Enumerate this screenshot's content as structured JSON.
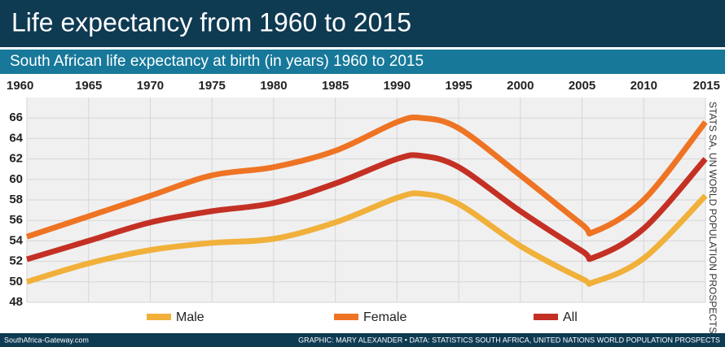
{
  "chart_data": {
    "type": "line",
    "title": "Life expectancy from 1960 to 2015",
    "subtitle": "South African life expectancy at birth (in years) 1960 to 2015",
    "source": "STATS SA, UN WORLD POPULATION PROSPECTS",
    "footer_site": "SouthAfrica-Gateway.com",
    "footer_credit": "GRAPHIC: MARY ALEXANDER • DATA: STATISTICS SOUTH AFRICA, UNITED NATIONS WORLD POPULATION PROSPECTS",
    "x": [
      1960,
      1965,
      1970,
      1975,
      1980,
      1985,
      1990,
      1992,
      1995,
      2000,
      2005,
      2006,
      2010,
      2015
    ],
    "series": [
      {
        "name": "Male",
        "color": "#f0b03a",
        "values": [
          50.0,
          51.8,
          53.1,
          53.8,
          54.2,
          55.8,
          58.2,
          58.6,
          57.6,
          53.5,
          50.3,
          50.0,
          52.3,
          58.4
        ]
      },
      {
        "name": "Female",
        "color": "#ee7424",
        "values": [
          54.4,
          56.4,
          58.4,
          60.4,
          61.2,
          62.8,
          65.6,
          66.0,
          65.0,
          60.4,
          55.6,
          54.9,
          58.0,
          65.6
        ]
      },
      {
        "name": "All",
        "color": "#c43024",
        "values": [
          52.2,
          54.0,
          55.8,
          56.9,
          57.7,
          59.6,
          62.0,
          62.3,
          61.2,
          56.9,
          53.0,
          52.4,
          55.2,
          62.0
        ]
      }
    ],
    "xlim": [
      1960,
      2015
    ],
    "xticks": [
      1960,
      1965,
      1970,
      1975,
      1980,
      1985,
      1990,
      1995,
      2000,
      2005,
      2010,
      2015
    ],
    "ylim": [
      48,
      68
    ],
    "yticks": [
      48,
      50,
      52,
      54,
      56,
      58,
      60,
      62,
      64,
      66
    ],
    "grid": true
  }
}
